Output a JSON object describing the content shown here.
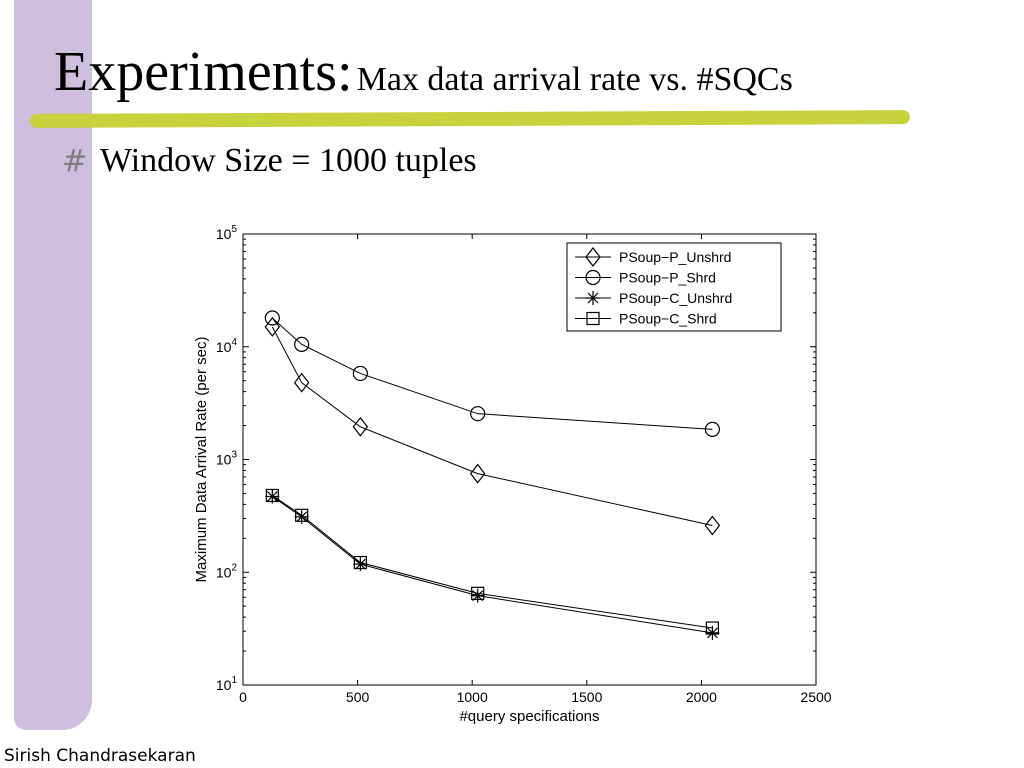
{
  "slide": {
    "title_main": "Experiments:",
    "title_sub": "Max data arrival rate vs. #SQCs",
    "bullet_icon": "hash-bullet-icon",
    "bullet_text": "Window Size = 1000 tuples",
    "footer": "Sirish Chandrasekaran",
    "colors": {
      "side_bar": "#cdbfdd",
      "underline": "#c8d23c",
      "bullet": "#7d7d7d"
    }
  },
  "chart_data": {
    "type": "line",
    "xlabel": "#query specifications",
    "ylabel": "Maximum Data Arrival Rate (per sec)",
    "xlim": [
      0,
      2500
    ],
    "ylim": [
      10,
      100000
    ],
    "y_scale": "log",
    "x_ticks": [
      0,
      500,
      1000,
      1500,
      2000,
      2500
    ],
    "y_ticks": [
      {
        "base": "10",
        "exp": "1",
        "value": 10
      },
      {
        "base": "10",
        "exp": "2",
        "value": 100
      },
      {
        "base": "10",
        "exp": "3",
        "value": 1000
      },
      {
        "base": "10",
        "exp": "4",
        "value": 10000
      },
      {
        "base": "10",
        "exp": "5",
        "value": 100000
      }
    ],
    "legend_position": "top-right",
    "grid": false,
    "x": [
      128,
      256,
      512,
      1024,
      2048
    ],
    "series": [
      {
        "name": "PSoup−P_Unshrd",
        "marker": "diamond",
        "values": [
          15000,
          4800,
          1950,
          750,
          260
        ]
      },
      {
        "name": "PSoup−P_Shrd",
        "marker": "circle",
        "values": [
          18000,
          10500,
          5800,
          2550,
          1850
        ]
      },
      {
        "name": "PSoup−C_Unshrd",
        "marker": "star",
        "values": [
          470,
          310,
          118,
          62,
          29
        ]
      },
      {
        "name": "PSoup−C_Shrd",
        "marker": "square",
        "values": [
          480,
          320,
          122,
          65,
          32
        ]
      }
    ]
  }
}
